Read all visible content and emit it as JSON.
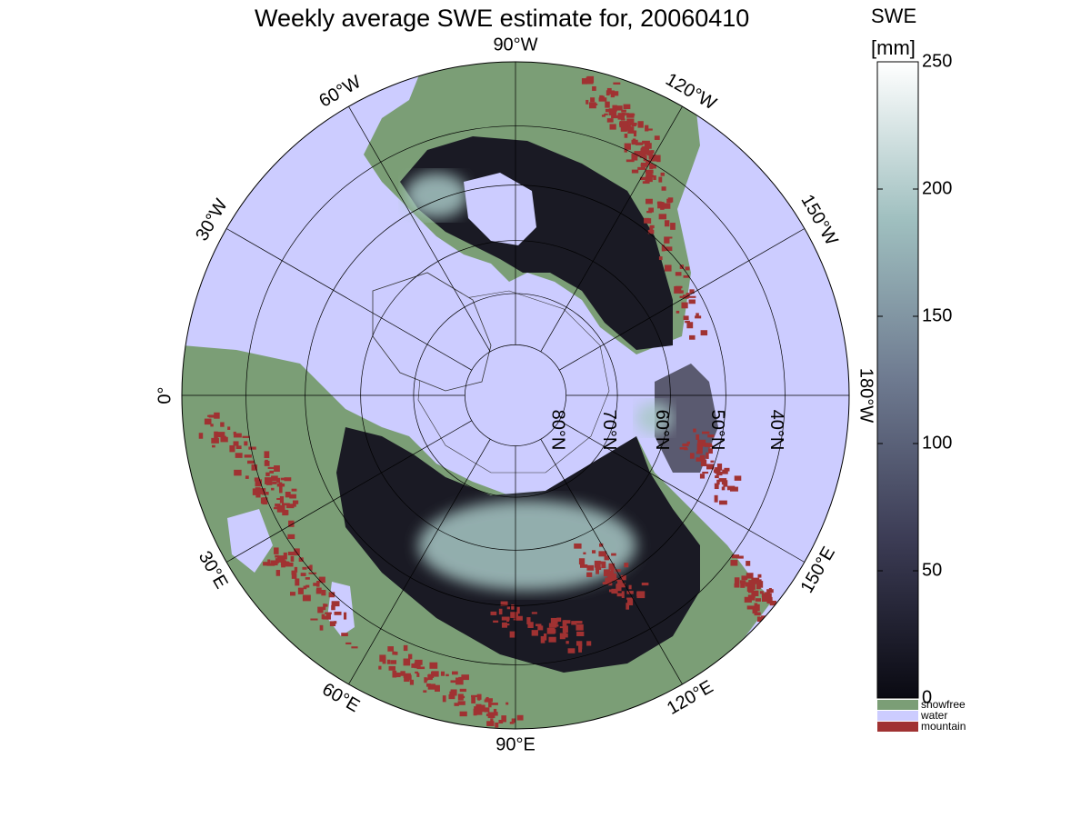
{
  "title": "Weekly average SWE estimate for, 20060410",
  "colorbar": {
    "title_line1": "SWE",
    "title_line2": "[mm]",
    "min": 0,
    "max": 250,
    "ticks": [
      "0",
      "50",
      "100",
      "150",
      "200",
      "250"
    ],
    "gradient_colors": [
      "#0a0a12",
      "#3c3c55",
      "#6e7a90",
      "#9fbfbf",
      "#ffffff"
    ],
    "categories": [
      {
        "label": "snowfree",
        "color": "#7b9e76"
      },
      {
        "label": "water",
        "color": "#ccccff"
      },
      {
        "label": "mountain",
        "color": "#a03232"
      }
    ]
  },
  "map": {
    "projection": "north polar stereographic",
    "ocean_color": "#ccccff",
    "land_color": "#7b9e76",
    "snow_dark": "#1a1a24",
    "snow_mid": "#5a5a70",
    "snow_light": "#a8c8c6",
    "mountain_color": "#a03232",
    "meridian_labels": [
      "90°W",
      "120°W",
      "150°W",
      "180°W",
      "150°E",
      "120°E",
      "90°E",
      "60°E",
      "30°E",
      "0°",
      "30°W",
      "60°W"
    ],
    "parallel_labels": [
      "80°N",
      "70°N",
      "60°N",
      "50°N",
      "40°N"
    ]
  }
}
